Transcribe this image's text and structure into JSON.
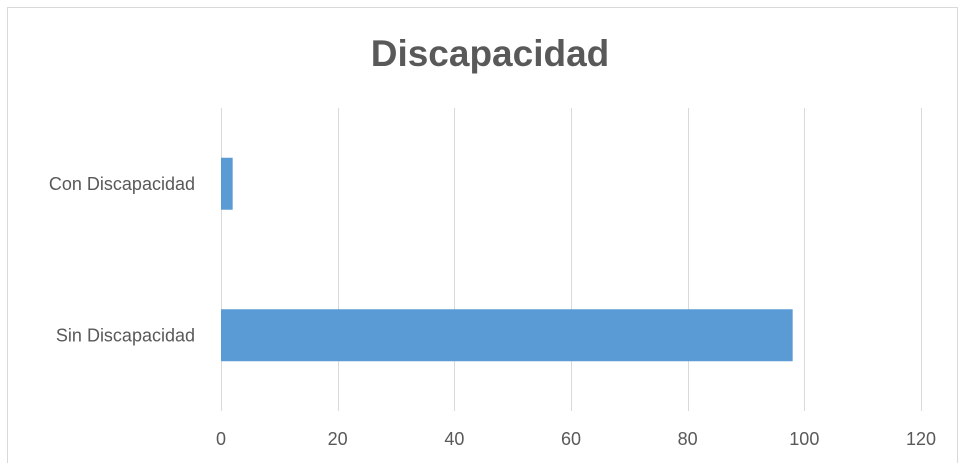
{
  "chart_data": {
    "type": "bar",
    "orientation": "horizontal",
    "title": "Discapacidad",
    "categories": [
      "Con Discapacidad",
      "Sin Discapacidad"
    ],
    "values": [
      2,
      98
    ],
    "xlim": [
      0,
      120
    ],
    "x_ticks": [
      0,
      20,
      40,
      60,
      80,
      100,
      120
    ],
    "grid": "vertical",
    "legend": "none",
    "bar_color": "#5b9bd5",
    "grid_color": "#d9d9d9",
    "text_color": "#595959"
  }
}
